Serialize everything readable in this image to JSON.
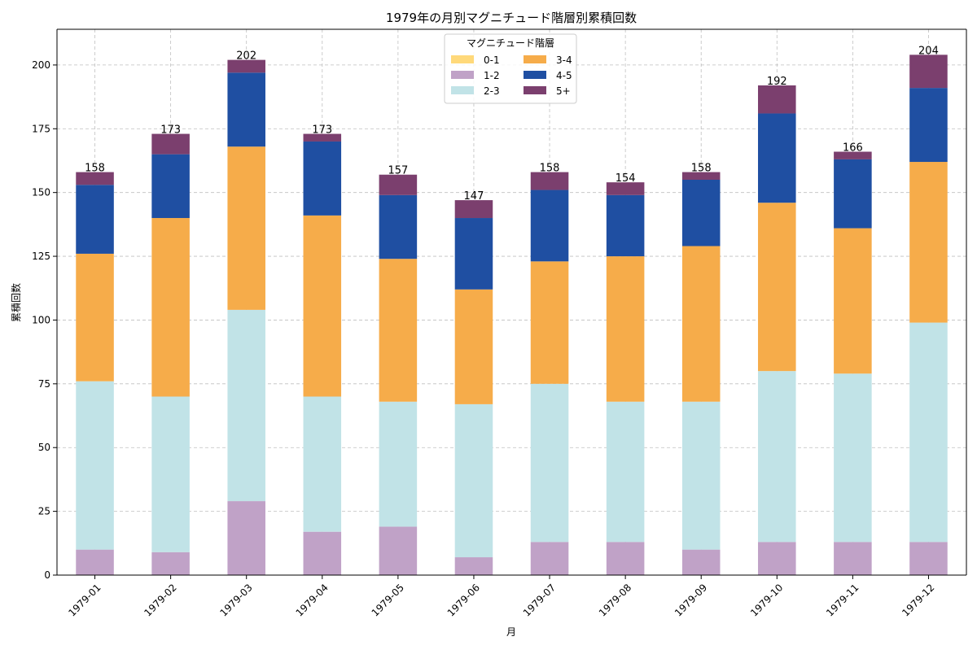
{
  "chart_data": {
    "type": "bar",
    "stacked": true,
    "title": "1979年の月別マグニチュード階層別累積回数",
    "xlabel": "月",
    "ylabel": "累積回数",
    "ylim": [
      0,
      214
    ],
    "yticks": [
      0,
      25,
      50,
      75,
      100,
      125,
      150,
      175,
      200
    ],
    "grid": true,
    "legend": {
      "title": "マグニチュード階層",
      "position": "top-center",
      "columns": 2
    },
    "categories": [
      "1979-01",
      "1979-02",
      "1979-03",
      "1979-04",
      "1979-05",
      "1979-06",
      "1979-07",
      "1979-08",
      "1979-09",
      "1979-10",
      "1979-11",
      "1979-12"
    ],
    "series": [
      {
        "name": "0-1",
        "color": "#FFD97A",
        "values": [
          0,
          0,
          0,
          0,
          0,
          0,
          0,
          0,
          0,
          0,
          0,
          0
        ]
      },
      {
        "name": "1-2",
        "color": "#C0A2C7",
        "values": [
          10,
          9,
          29,
          17,
          19,
          7,
          13,
          13,
          10,
          13,
          13,
          13
        ]
      },
      {
        "name": "2-3",
        "color": "#C1E3E7",
        "values": [
          66,
          61,
          75,
          53,
          49,
          60,
          62,
          55,
          58,
          67,
          66,
          86
        ]
      },
      {
        "name": "3-4",
        "color": "#F6AC4A",
        "values": [
          50,
          70,
          64,
          71,
          56,
          45,
          48,
          57,
          61,
          66,
          57,
          63
        ]
      },
      {
        "name": "4-5",
        "color": "#1F4FA2",
        "values": [
          27,
          25,
          29,
          29,
          25,
          28,
          28,
          24,
          26,
          35,
          27,
          29
        ]
      },
      {
        "name": "5+",
        "color": "#7B3F6E",
        "values": [
          5,
          8,
          5,
          3,
          8,
          7,
          7,
          5,
          3,
          11,
          3,
          13
        ]
      }
    ],
    "totals": [
      158,
      173,
      202,
      173,
      157,
      147,
      158,
      154,
      158,
      192,
      166,
      204
    ]
  }
}
